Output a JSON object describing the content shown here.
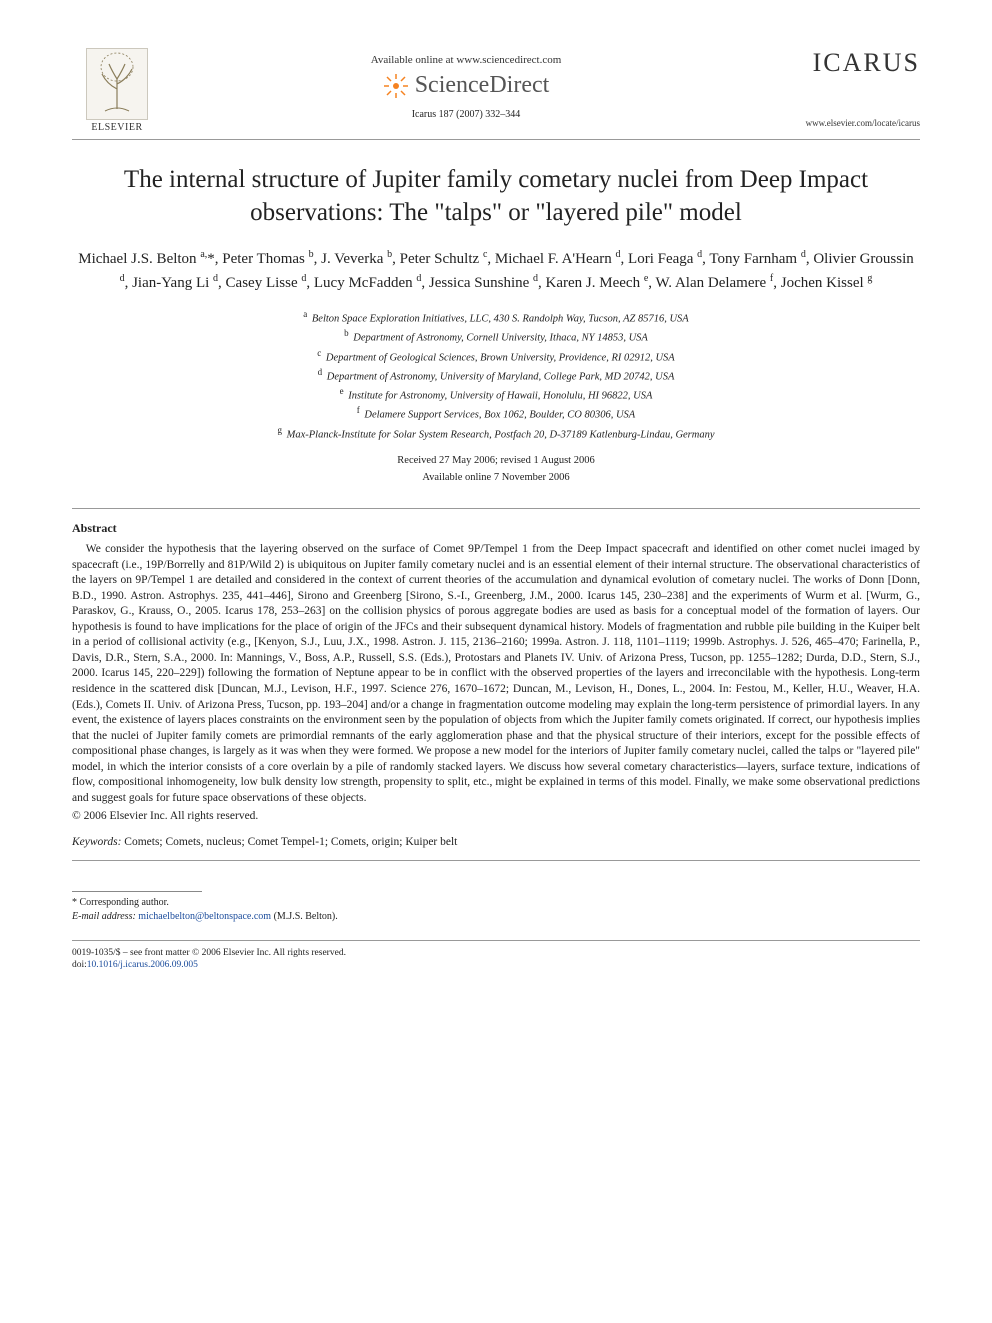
{
  "colors": {
    "text": "#222222",
    "link": "#1a4b9b",
    "rule": "#999999",
    "logo_gray": "#555555",
    "burst_orange": "#f58220"
  },
  "header": {
    "publisher_name": "ELSEVIER",
    "available_online": "Available online at www.sciencedirect.com",
    "sd_brand": "ScienceDirect",
    "journal_ref": "Icarus 187 (2007) 332–344",
    "journal_title": "ICARUS",
    "journal_url": "www.elsevier.com/locate/icarus"
  },
  "article": {
    "title_line1": "The internal structure of Jupiter family cometary nuclei from Deep Impact",
    "title_line2": "observations: The \"talps\" or \"layered pile\" model",
    "authors_html": "Michael J.S. Belton <sup>a,</sup>*, Peter Thomas <sup>b</sup>, J. Veverka <sup>b</sup>, Peter Schultz <sup>c</sup>, Michael F. A'Hearn <sup>d</sup>, Lori Feaga <sup>d</sup>, Tony Farnham <sup>d</sup>, Olivier Groussin <sup>d</sup>, Jian-Yang Li <sup>d</sup>, Casey Lisse <sup>d</sup>, Lucy McFadden <sup>d</sup>, Jessica Sunshine <sup>d</sup>, Karen J. Meech <sup>e</sup>, W. Alan Delamere <sup>f</sup>, Jochen Kissel <sup>g</sup>",
    "affiliations": [
      {
        "sup": "a",
        "text": "Belton Space Exploration Initiatives, LLC, 430 S. Randolph Way, Tucson, AZ 85716, USA"
      },
      {
        "sup": "b",
        "text": "Department of Astronomy, Cornell University, Ithaca, NY 14853, USA"
      },
      {
        "sup": "c",
        "text": "Department of Geological Sciences, Brown University, Providence, RI 02912, USA"
      },
      {
        "sup": "d",
        "text": "Department of Astronomy, University of Maryland, College Park, MD 20742, USA"
      },
      {
        "sup": "e",
        "text": "Institute for Astronomy, University of Hawaii, Honolulu, HI 96822, USA"
      },
      {
        "sup": "f",
        "text": "Delamere Support Services, Box 1062, Boulder, CO 80306, USA"
      },
      {
        "sup": "g",
        "text": "Max-Planck-Institute for Solar System Research, Postfach 20, D-37189 Katlenburg-Lindau, Germany"
      }
    ],
    "received": "Received 27 May 2006; revised 1 August 2006",
    "available": "Available online 7 November 2006"
  },
  "abstract": {
    "heading": "Abstract",
    "body": "We consider the hypothesis that the layering observed on the surface of Comet 9P/Tempel 1 from the Deep Impact spacecraft and identified on other comet nuclei imaged by spacecraft (i.e., 19P/Borrelly and 81P/Wild 2) is ubiquitous on Jupiter family cometary nuclei and is an essential element of their internal structure. The observational characteristics of the layers on 9P/Tempel 1 are detailed and considered in the context of current theories of the accumulation and dynamical evolution of cometary nuclei. The works of Donn [Donn, B.D., 1990. Astron. Astrophys. 235, 441–446], Sirono and Greenberg [Sirono, S.-I., Greenberg, J.M., 2000. Icarus 145, 230–238] and the experiments of Wurm et al. [Wurm, G., Paraskov, G., Krauss, O., 2005. Icarus 178, 253–263] on the collision physics of porous aggregate bodies are used as basis for a conceptual model of the formation of layers. Our hypothesis is found to have implications for the place of origin of the JFCs and their subsequent dynamical history. Models of fragmentation and rubble pile building in the Kuiper belt in a period of collisional activity (e.g., [Kenyon, S.J., Luu, J.X., 1998. Astron. J. 115, 2136–2160; 1999a. Astron. J. 118, 1101–1119; 1999b. Astrophys. J. 526, 465–470; Farinella, P., Davis, D.R., Stern, S.A., 2000. In: Mannings, V., Boss, A.P., Russell, S.S. (Eds.), Protostars and Planets IV. Univ. of Arizona Press, Tucson, pp. 1255–1282; Durda, D.D., Stern, S.J., 2000. Icarus 145, 220–229]) following the formation of Neptune appear to be in conflict with the observed properties of the layers and irreconcilable with the hypothesis. Long-term residence in the scattered disk [Duncan, M.J., Levison, H.F., 1997. Science 276, 1670–1672; Duncan, M., Levison, H., Dones, L., 2004. In: Festou, M., Keller, H.U., Weaver, H.A. (Eds.), Comets II. Univ. of Arizona Press, Tucson, pp. 193–204] and/or a change in fragmentation outcome modeling may explain the long-term persistence of primordial layers. In any event, the existence of layers places constraints on the environment seen by the population of objects from which the Jupiter family comets originated. If correct, our hypothesis implies that the nuclei of Jupiter family comets are primordial remnants of the early agglomeration phase and that the physical structure of their interiors, except for the possible effects of compositional phase changes, is largely as it was when they were formed. We propose a new model for the interiors of Jupiter family cometary nuclei, called the talps or \"layered pile\" model, in which the interior consists of a core overlain by a pile of randomly stacked layers. We discuss how several cometary characteristics—layers, surface texture, indications of flow, compositional inhomogeneity, low bulk density low strength, propensity to split, etc., might be explained in terms of this model. Finally, we make some observational predictions and suggest goals for future space observations of these objects.",
    "copyright": "© 2006 Elsevier Inc. All rights reserved."
  },
  "keywords": {
    "label": "Keywords:",
    "text": " Comets; Comets, nucleus; Comet Tempel-1; Comets, origin; Kuiper belt"
  },
  "footnotes": {
    "corresponding": "* Corresponding author.",
    "email_label": "E-mail address:",
    "email": "michaelbelton@beltonspace.com",
    "email_paren": "(M.J.S. Belton)."
  },
  "bottom": {
    "issn_line": "0019-1035/$ – see front matter  © 2006 Elsevier Inc. All rights reserved.",
    "doi_label": "doi:",
    "doi": "10.1016/j.icarus.2006.09.005"
  }
}
